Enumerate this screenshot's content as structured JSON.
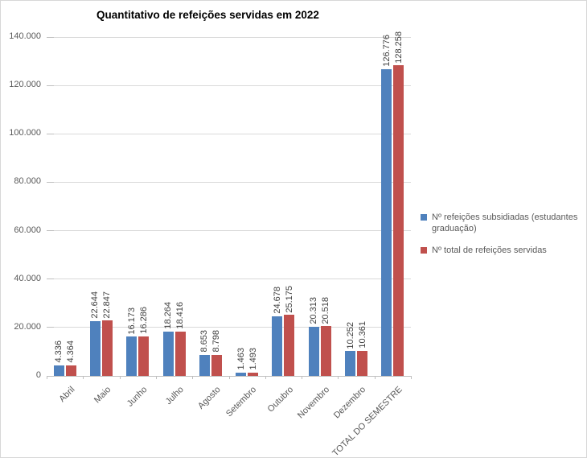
{
  "chart_data": {
    "type": "bar",
    "title": "Quantitativo de refeições servidas em 2022",
    "categories": [
      "Abril",
      "Maio",
      "Junho",
      "Julho",
      "Agosto",
      "Setembro",
      "Outubro",
      "Novembro",
      "Dezembro",
      "TOTAL DO SEMESTRE"
    ],
    "series": [
      {
        "name": "Nº refeições subsidiadas (estudantes graduação)",
        "color": "#4F81BD",
        "values": [
          4336,
          22644,
          16173,
          18264,
          8653,
          1463,
          24678,
          20313,
          10252,
          126776
        ],
        "value_labels": [
          "4.336",
          "22.644",
          "16.173",
          "18.264",
          "8.653",
          "1.463",
          "24.678",
          "20.313",
          "10.252",
          "126.776"
        ]
      },
      {
        "name": "Nº total de refeições servidas",
        "color": "#C0504D",
        "values": [
          4364,
          22847,
          16286,
          18416,
          8798,
          1493,
          25175,
          20518,
          10361,
          128258
        ],
        "value_labels": [
          "4.364",
          "22.847",
          "16.286",
          "18.416",
          "8.798",
          "1.493",
          "25.175",
          "20.518",
          "10.361",
          "128.258"
        ]
      }
    ],
    "ylim": [
      0,
      140000
    ],
    "ytick_step": 20000,
    "ytick_labels": [
      "0",
      "20.000",
      "40.000",
      "60.000",
      "80.000",
      "100.000",
      "120.000",
      "140.000"
    ],
    "xlabel": "",
    "ylabel": "",
    "grid": true,
    "legend_position": "right",
    "data_labels": true,
    "data_label_rotation": 90,
    "category_label_rotation": 45
  }
}
